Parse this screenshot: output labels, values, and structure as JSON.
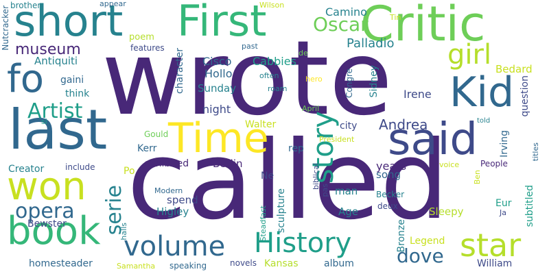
{
  "words": {
    "wrote": "wrote",
    "called": "called",
    "short": "short",
    "first": "First",
    "critic": "Critic",
    "last": "last",
    "fo": "fo",
    "kid": "Kid",
    "said": "said",
    "time": "Time",
    "won": "won",
    "book": "book",
    "history": "History",
    "volume": "volume",
    "story": "story",
    "star": "star",
    "girl": "girl",
    "artist": "Artist",
    "opera": "opera",
    "oscar": "Oscar",
    "museum": "museum",
    "serie": "serie",
    "dove": "dove",
    "andrea": "Andrea",
    "palladio": "Palladio",
    "camino": "Camino",
    "cabbies": "Cabbies",
    "cisco": "Cisco",
    "hollo": "Hollo",
    "sunday": "Sunday",
    "night": "night",
    "irene": "Irene",
    "bedard": "Bedard",
    "antiquiti": "Antiquiti",
    "poem": "poem",
    "features": "features",
    "gaini": "gaini",
    "think": "think",
    "kerr": "Kerr",
    "walter": "Walter",
    "rep": "rep",
    "city": "city",
    "berlin": "Berlin",
    "exhibited": "exhibited",
    "years": "years",
    "song": "song",
    "man": "man",
    "age": "Age",
    "spend": "spend",
    "higley": "Higley",
    "sleepy": "Sleepy",
    "legend": "Legend",
    "kansas": "Kansas",
    "album": "album",
    "william": "William",
    "bewster": "Bewster",
    "homesteader": "homesteader",
    "creator": "Creator",
    "include": "include",
    "po": "Po",
    "modern": "Modern",
    "samantha": "Samantha",
    "speaking": "speaking",
    "novels": "novels",
    "becker": "Becker",
    "deux": "deux",
    "eur": "Eur",
    "ja": "Ja",
    "people": "People",
    "voice": "voice",
    "told": "told",
    "april": "April",
    "president": "President",
    "gould": "Gould",
    "brother": "brother",
    "appear": "appear",
    "wilson": "Wilson",
    "tin": "Tin",
    "past": "past",
    "de": "de",
    "often": "often",
    "roam": "roam",
    "hero": "hero",
    "ne": "Ne",
    "si": "si",
    "nutcracker": "Nutcracker",
    "character": "character",
    "sidney": "Sidney",
    "congre": "Congre",
    "question": "question",
    "irving": "Irving",
    "subtitled": "subtitled",
    "titles": "titles",
    "sculpture": "sculpture",
    "bronze": "Bronze",
    "biblical": "biblical",
    "pas": "pas",
    "ben": "Ben",
    "halls": "halls",
    "steadfast": "Steadfast"
  }
}
